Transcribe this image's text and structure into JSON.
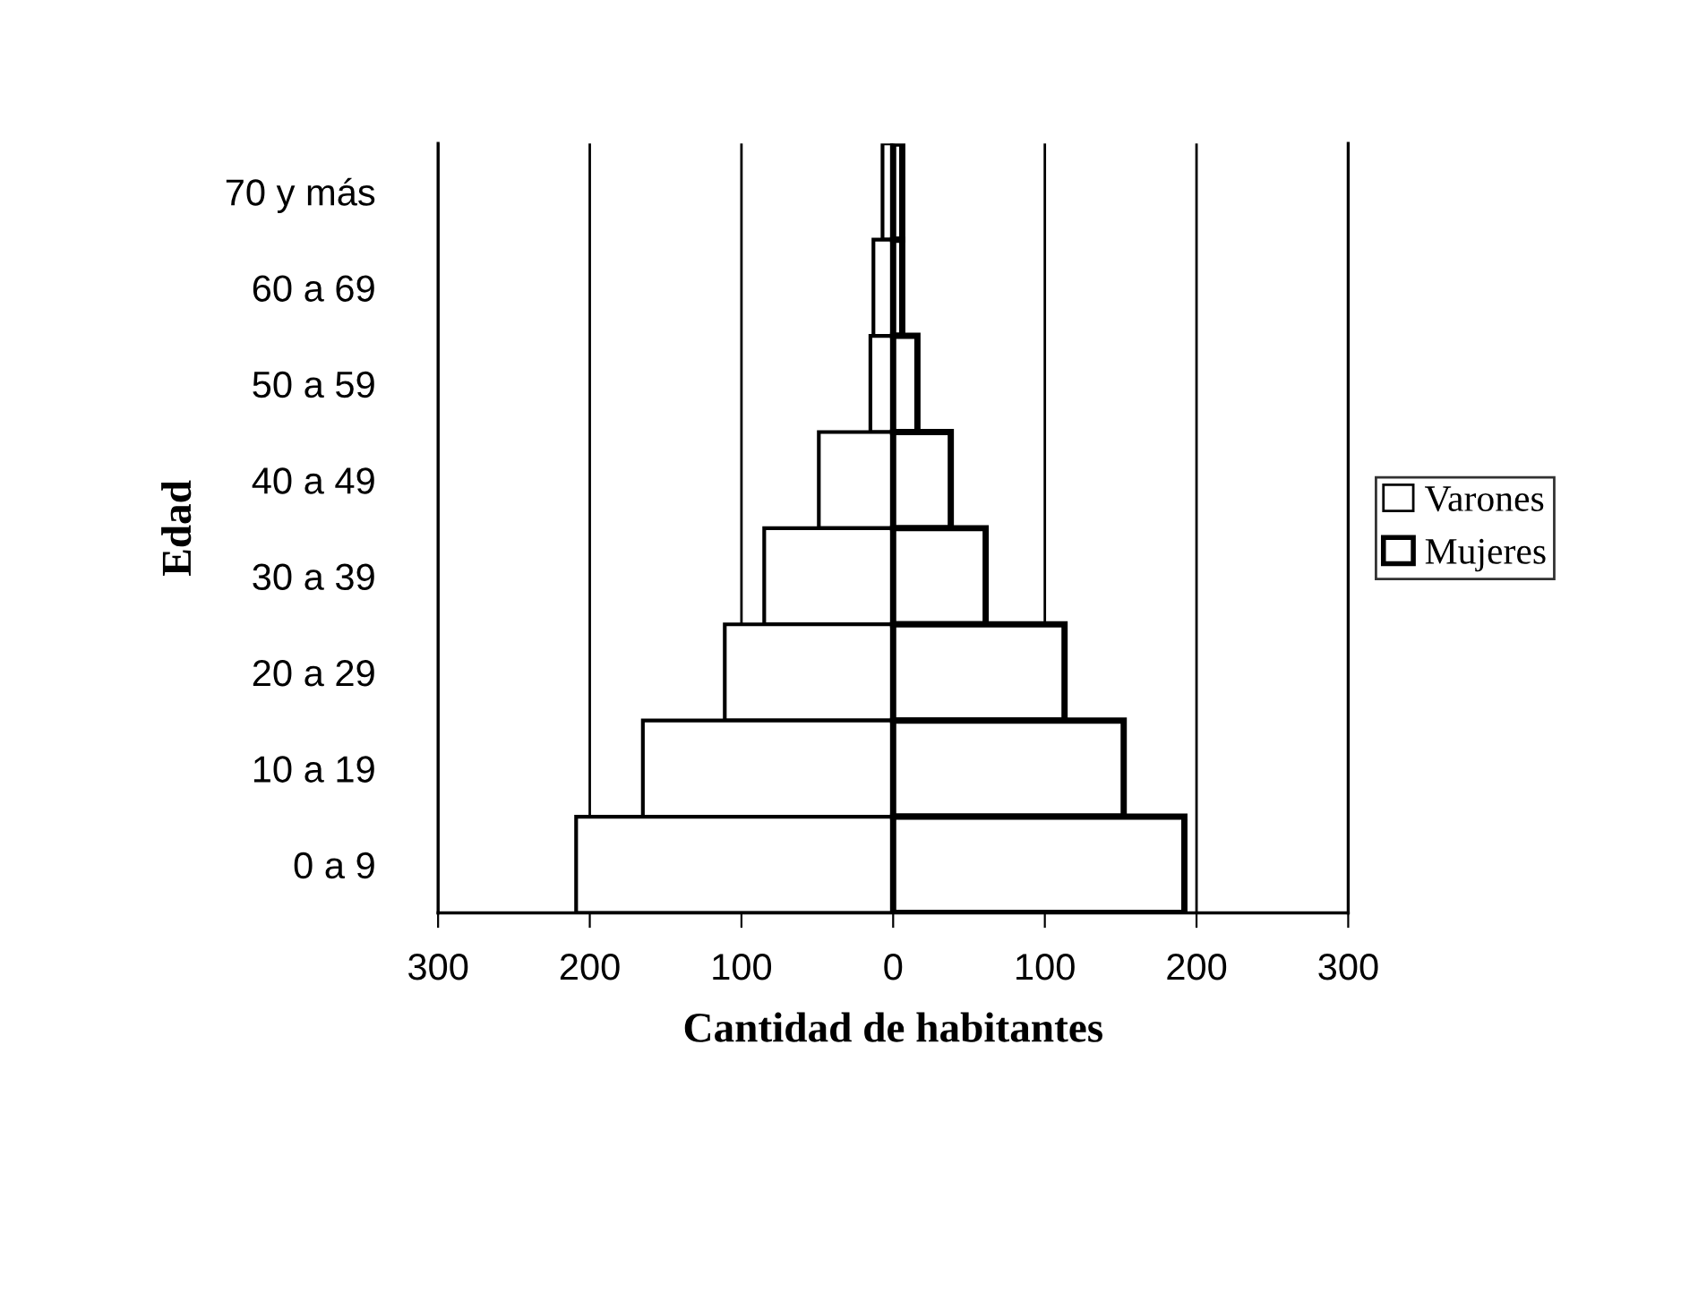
{
  "chart_data": {
    "type": "bar",
    "orientation": "horizontal",
    "stacked": true,
    "xlabel": "Cantidad de habitantes",
    "ylabel": "Edad",
    "categories": [
      "70 y más",
      "60 a 69",
      "50 a 59",
      "40 a 49",
      "30 a 39",
      "20 a 29",
      "10 a 19",
      "0 a 9"
    ],
    "series": [
      {
        "name": "Varones",
        "color": "#ffffff",
        "values": [
          -7,
          -13,
          -15,
          -49,
          -85,
          -111,
          -165,
          -209
        ]
      },
      {
        "name": "Mujeres",
        "color": "#ffffff",
        "values": [
          6,
          6,
          16,
          38,
          61,
          113,
          152,
          192
        ]
      }
    ],
    "xlim": [
      -300,
      300
    ],
    "xticks": [
      {
        "value": -300,
        "label": "300"
      },
      {
        "value": -200,
        "label": "200"
      },
      {
        "value": -100,
        "label": "100"
      },
      0,
      100,
      200,
      300
    ],
    "grid": "x",
    "legend": "right"
  }
}
